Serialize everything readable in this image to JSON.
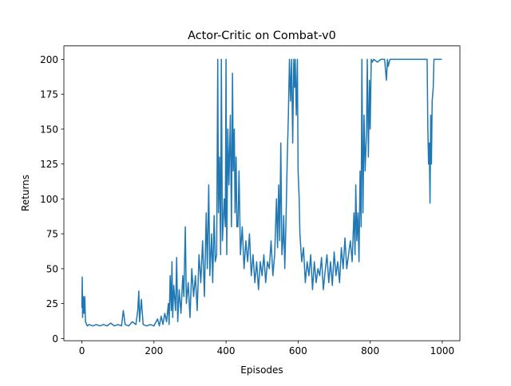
{
  "chart_data": {
    "type": "line",
    "title": "Actor-Critic on Combat-v0",
    "xlabel": "Episodes",
    "ylabel": "Returns",
    "xlim": [
      -49.95,
      1048.95
    ],
    "ylim": [
      -1.6,
      209.6
    ],
    "xticks": [
      0,
      200,
      400,
      600,
      800,
      1000
    ],
    "yticks": [
      0,
      25,
      50,
      75,
      100,
      125,
      150,
      175,
      200
    ],
    "series": [
      {
        "color": "#1f77b4",
        "x": [
          0,
          1,
          2,
          4,
          6,
          8,
          10,
          15,
          20,
          30,
          40,
          50,
          60,
          70,
          80,
          90,
          100,
          110,
          115,
          120,
          130,
          140,
          150,
          155,
          158,
          160,
          165,
          170,
          180,
          190,
          200,
          210,
          215,
          220,
          225,
          230,
          235,
          240,
          242,
          245,
          248,
          250,
          252,
          255,
          260,
          263,
          266,
          270,
          275,
          280,
          283,
          287,
          290,
          295,
          300,
          305,
          310,
          315,
          320,
          325,
          330,
          335,
          340,
          345,
          348,
          352,
          355,
          360,
          363,
          367,
          370,
          374,
          377,
          379,
          382,
          385,
          387,
          390,
          395,
          398,
          400,
          402,
          405,
          408,
          412,
          415,
          418,
          420,
          423,
          425,
          428,
          430,
          433,
          436,
          440,
          445,
          450,
          455,
          460,
          465,
          470,
          475,
          480,
          485,
          490,
          495,
          500,
          505,
          510,
          515,
          520,
          525,
          530,
          535,
          540,
          543,
          546,
          549,
          552,
          555,
          558,
          560,
          563,
          566,
          570,
          573,
          576,
          579,
          582,
          585,
          588,
          590,
          592,
          595,
          598,
          600,
          603,
          605,
          610,
          615,
          620,
          625,
          630,
          635,
          640,
          645,
          650,
          655,
          660,
          665,
          670,
          675,
          680,
          685,
          690,
          695,
          700,
          705,
          710,
          715,
          720,
          725,
          730,
          735,
          740,
          745,
          750,
          755,
          758,
          760,
          763,
          766,
          769,
          772,
          775,
          777,
          780,
          783,
          786,
          790,
          792,
          795,
          798,
          800,
          803,
          806,
          810,
          820,
          830,
          840,
          845,
          848,
          850,
          855,
          870,
          900,
          940,
          958,
          960,
          962,
          964,
          966,
          968,
          970,
          972,
          975,
          977,
          980,
          999
        ],
        "values": [
          22,
          44,
          15,
          30,
          18,
          30,
          12,
          9,
          10,
          9,
          10,
          9,
          10,
          9,
          11,
          9,
          10,
          9,
          20,
          10,
          9,
          12,
          10,
          20,
          34,
          12,
          28,
          10,
          9,
          10,
          9,
          14,
          9,
          16,
          10,
          18,
          12,
          25,
          10,
          45,
          20,
          55,
          15,
          38,
          20,
          58,
          12,
          35,
          18,
          45,
          30,
          80,
          25,
          40,
          15,
          50,
          30,
          45,
          20,
          60,
          40,
          70,
          30,
          90,
          50,
          110,
          45,
          75,
          40,
          88,
          55,
          60,
          200,
          90,
          130,
          60,
          200,
          70,
          100,
          80,
          200,
          60,
          150,
          110,
          160,
          80,
          190,
          120,
          150,
          90,
          130,
          80,
          80,
          120,
          60,
          80,
          50,
          70,
          55,
          75,
          45,
          60,
          40,
          55,
          35,
          55,
          45,
          60,
          40,
          55,
          50,
          70,
          45,
          60,
          100,
          65,
          110,
          70,
          140,
          60,
          70,
          88,
          50,
          80,
          130,
          160,
          200,
          170,
          200,
          140,
          200,
          180,
          200,
          160,
          200,
          120,
          100,
          75,
          55,
          65,
          40,
          55,
          45,
          60,
          35,
          55,
          40,
          50,
          45,
          58,
          35,
          48,
          60,
          40,
          55,
          38,
          62,
          45,
          55,
          40,
          65,
          50,
          72,
          50,
          60,
          70,
          55,
          90,
          60,
          110,
          70,
          90,
          55,
          120,
          80,
          200,
          90,
          160,
          120,
          150,
          200,
          130,
          185,
          150,
          200,
          198,
          200,
          198,
          200,
          200,
          185,
          200,
          195,
          200,
          200,
          200,
          200,
          200,
          150,
          125,
          140,
          97,
          160,
          125,
          170,
          180,
          200,
          200,
          200
        ]
      }
    ]
  }
}
